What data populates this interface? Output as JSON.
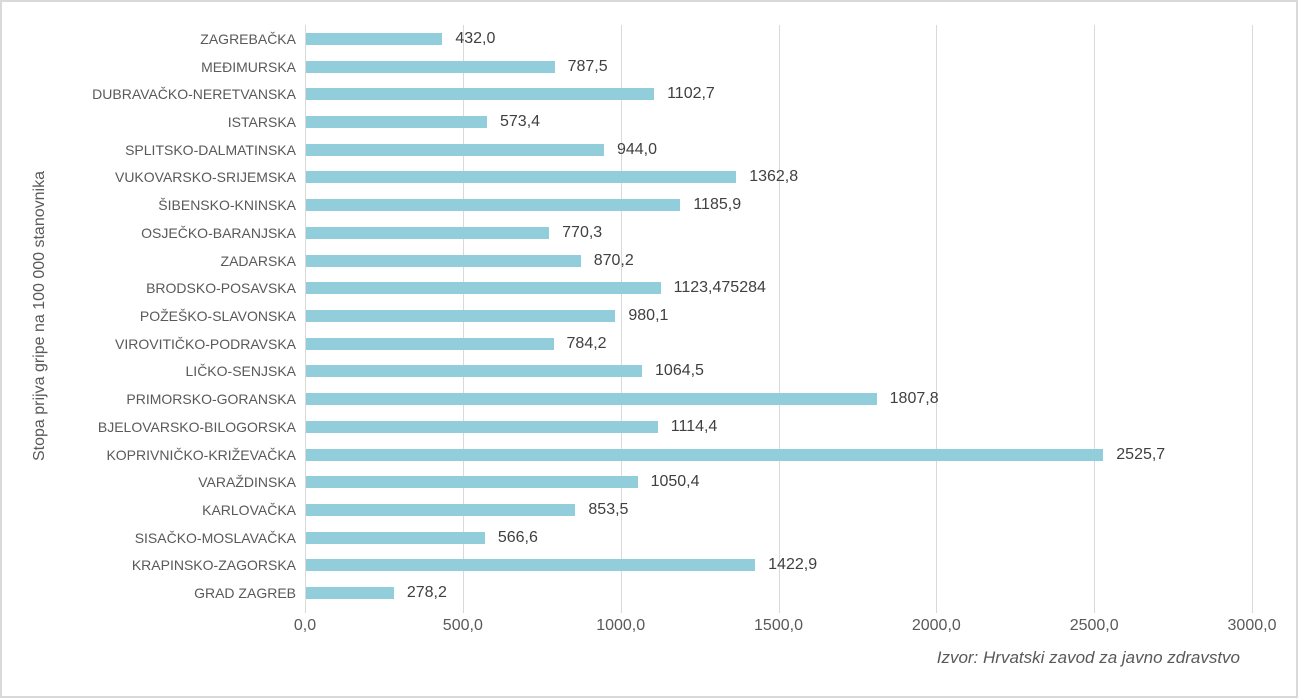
{
  "window": {
    "background_color": "#FFFFFF",
    "border_color": "#D9D9D9"
  },
  "chart_data": {
    "type": "bar",
    "orientation": "horizontal",
    "title": "",
    "xlabel": "",
    "ylabel": "Stopa prijva gripe na 100 000 stanovnika",
    "source_note": "Izvor: Hrvatski zavod za javno zdravstvo",
    "categories": [
      "ZAGREBAČKA",
      "MEĐIMURSKA",
      "DUBRAVAČKO-NERETVANSKA",
      "ISTARSKA",
      "SPLITSKO-DALMATINSKA",
      "VUKOVARSKO-SRIJEMSKA",
      "ŠIBENSKO-KNINSKA",
      "OSJEČKO-BARANJSKA",
      "ZADARSKA",
      "BRODSKO-POSAVSKA",
      "POŽEŠKO-SLAVONSKA",
      "VIROVITIČKO-PODRAVSKA",
      "LIČKO-SENJSKA",
      "PRIMORSKO-GORANSKA",
      "BJELOVARSKO-BILOGORSKA",
      "KOPRIVNIČKO-KRIŽEVAČKA",
      "VARAŽDINSKA",
      "KARLOVAČKA",
      "SISAČKO-MOSLAVAČKA",
      "KRAPINSKO-ZAGORSKA",
      "GRAD ZAGREB"
    ],
    "values": [
      432.0,
      787.5,
      1102.7,
      573.4,
      944.0,
      1362.8,
      1185.9,
      770.3,
      870.2,
      1123.475284,
      980.1,
      784.2,
      1064.5,
      1807.8,
      1114.4,
      2525.7,
      1050.4,
      853.5,
      566.6,
      1422.9,
      278.2
    ],
    "value_labels": [
      "432,0",
      "787,5",
      "1102,7",
      "573,4",
      "944,0",
      "1362,8",
      "1185,9",
      "770,3",
      "870,2",
      "1123,475284",
      "980,1",
      "784,2",
      "1064,5",
      "1807,8",
      "1114,4",
      "2525,7",
      "1050,4",
      "853,5",
      "566,6",
      "1422,9",
      "278,2"
    ],
    "xlim": [
      0,
      3000
    ],
    "x_tick_values": [
      0,
      500,
      1000,
      1500,
      2000,
      2500,
      3000
    ],
    "x_tick_labels": [
      "0,0",
      "500,0",
      "1000,0",
      "1500,0",
      "2000,0",
      "2500,0",
      "3000,0"
    ],
    "grid": true,
    "legend": false,
    "bar_color": "#92CDDC",
    "gridline_color": "#D9D9D9",
    "category_label_color": "#595959",
    "value_label_color": "#404040",
    "axis_label_color": "#595959"
  }
}
